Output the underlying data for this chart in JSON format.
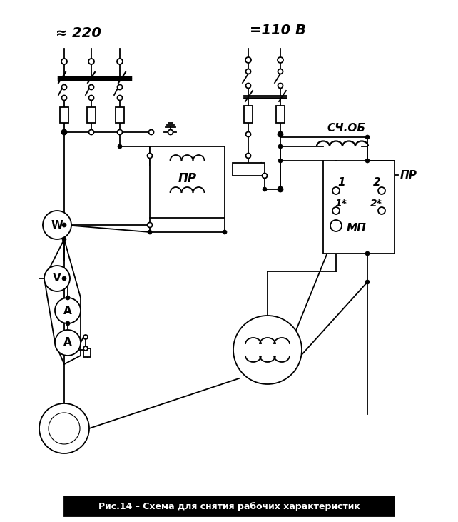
{
  "title": "Рис.14 – Схема для снятия рабочих характеристик",
  "bg_color": "#ffffff",
  "line_color": "#000000",
  "approx220": "≈ 220",
  "dc110": "=110 В",
  "label_PR_left": "ПР",
  "label_W": "W",
  "label_V": "V",
  "label_A1": "A",
  "label_A2": "A",
  "label_SCHOB": "СЧ.ОБ",
  "label_PR_right": "ПР",
  "label_MP": "МП",
  "label_1": "1",
  "label_1star": "1*",
  "label_2": "2",
  "label_2star": "2*",
  "figw": 6.42,
  "figh": 7.31,
  "dpi": 100
}
